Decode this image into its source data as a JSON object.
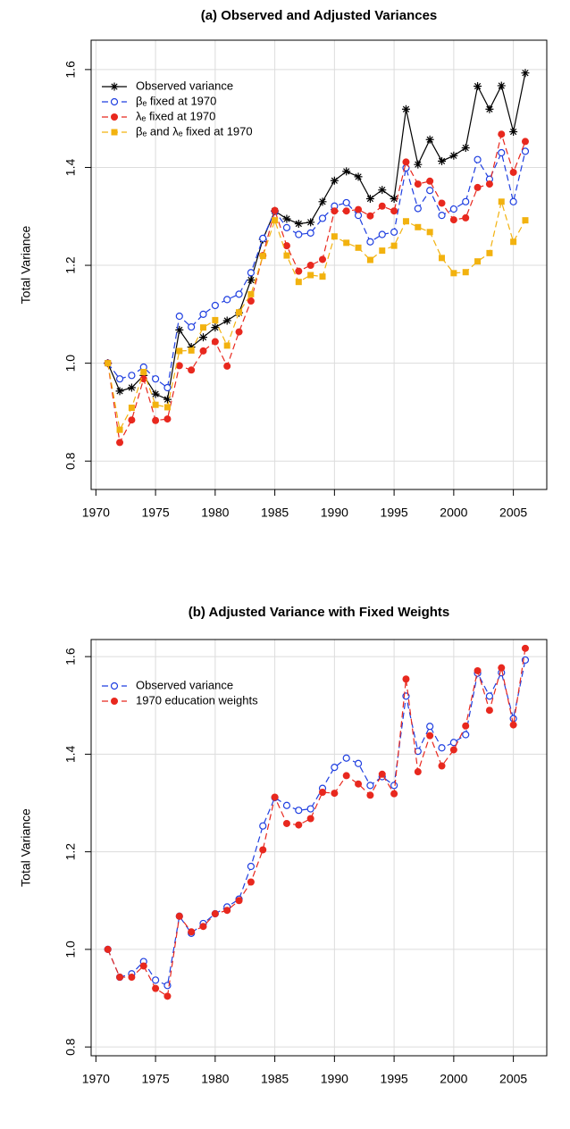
{
  "chart_data": [
    {
      "type": "line",
      "title": "(a) Observed and Adjusted Variances",
      "ylabel": "Total Variance",
      "x": [
        1971,
        1972,
        1973,
        1974,
        1975,
        1976,
        1977,
        1978,
        1979,
        1980,
        1981,
        1982,
        1983,
        1984,
        1985,
        1986,
        1987,
        1988,
        1989,
        1990,
        1991,
        1992,
        1993,
        1994,
        1995,
        1996,
        1997,
        1998,
        1999,
        2000,
        2001,
        2002,
        2003,
        2004,
        2005,
        2006
      ],
      "series": [
        {
          "name": "Observed variance",
          "color": "#000000",
          "marker": "asterisk",
          "dashed": false,
          "values": [
            1.0,
            0.943,
            0.95,
            0.975,
            0.937,
            0.926,
            1.068,
            1.033,
            1.053,
            1.073,
            1.087,
            1.103,
            1.17,
            1.253,
            1.311,
            1.295,
            1.285,
            1.288,
            1.33,
            1.373,
            1.392,
            1.381,
            1.336,
            1.354,
            1.336,
            1.519,
            1.406,
            1.457,
            1.413,
            1.424,
            1.44,
            1.566,
            1.519,
            1.567,
            1.473,
            1.593
          ]
        },
        {
          "name": "βₑ fixed at 1970",
          "color": "#1f3fe0",
          "marker": "open-circle",
          "dashed": true,
          "values": [
            1.0,
            0.968,
            0.975,
            0.992,
            0.968,
            0.95,
            1.096,
            1.074,
            1.1,
            1.118,
            1.13,
            1.141,
            1.185,
            1.255,
            1.311,
            1.277,
            1.263,
            1.266,
            1.296,
            1.321,
            1.328,
            1.302,
            1.248,
            1.263,
            1.268,
            1.399,
            1.316,
            1.353,
            1.302,
            1.315,
            1.33,
            1.416,
            1.376,
            1.43,
            1.33,
            1.433
          ]
        },
        {
          "name": "λₑ fixed at 1970",
          "color": "#e8281e",
          "marker": "circle",
          "dashed": true,
          "values": [
            1.0,
            0.838,
            0.884,
            0.968,
            0.883,
            0.886,
            0.995,
            0.986,
            1.025,
            1.044,
            0.994,
            1.064,
            1.127,
            1.22,
            1.312,
            1.24,
            1.188,
            1.2,
            1.212,
            1.311,
            1.311,
            1.314,
            1.301,
            1.321,
            1.311,
            1.411,
            1.366,
            1.372,
            1.327,
            1.293,
            1.297,
            1.359,
            1.366,
            1.468,
            1.39,
            1.453
          ]
        },
        {
          "name": "βₑ and λₑ fixed at 1970",
          "color": "#f2b20f",
          "marker": "square",
          "dashed": true,
          "values": [
            1.0,
            0.864,
            0.909,
            0.982,
            0.915,
            0.91,
            1.025,
            1.026,
            1.073,
            1.088,
            1.036,
            1.104,
            1.141,
            1.219,
            1.292,
            1.22,
            1.166,
            1.18,
            1.177,
            1.259,
            1.246,
            1.236,
            1.211,
            1.23,
            1.24,
            1.29,
            1.278,
            1.268,
            1.215,
            1.184,
            1.186,
            1.208,
            1.225,
            1.33,
            1.248,
            1.292
          ]
        }
      ],
      "xlim": [
        1969.6,
        2007.8
      ],
      "ylim": [
        0.742,
        1.66
      ],
      "xticks": [
        1970,
        1975,
        1980,
        1985,
        1990,
        1995,
        2000,
        2005
      ],
      "yticks": [
        0.8,
        {
          "value": 1,
          "label": "1.0"
        },
        1.2,
        1.4,
        1.6
      ],
      "grid": true,
      "legend": "top-left"
    },
    {
      "type": "line",
      "title": "(b) Adjusted Variance with Fixed Weights",
      "ylabel": "Total Variance",
      "x": [
        1971,
        1972,
        1973,
        1974,
        1975,
        1976,
        1977,
        1978,
        1979,
        1980,
        1981,
        1982,
        1983,
        1984,
        1985,
        1986,
        1987,
        1988,
        1989,
        1990,
        1991,
        1992,
        1993,
        1994,
        1995,
        1996,
        1997,
        1998,
        1999,
        2000,
        2001,
        2002,
        2003,
        2004,
        2005,
        2006
      ],
      "series": [
        {
          "name": "Observed variance",
          "color": "#1f3fe0",
          "marker": "open-circle",
          "dashed": true,
          "values": [
            1.0,
            0.943,
            0.95,
            0.975,
            0.937,
            0.926,
            1.068,
            1.033,
            1.053,
            1.073,
            1.087,
            1.103,
            1.17,
            1.253,
            1.311,
            1.295,
            1.285,
            1.288,
            1.33,
            1.373,
            1.392,
            1.381,
            1.336,
            1.354,
            1.336,
            1.519,
            1.406,
            1.457,
            1.413,
            1.424,
            1.44,
            1.566,
            1.519,
            1.567,
            1.473,
            1.593
          ]
        },
        {
          "name": "1970 education weights",
          "color": "#e8281e",
          "marker": "circle",
          "dashed": true,
          "values": [
            1.0,
            0.943,
            0.943,
            0.966,
            0.92,
            0.904,
            1.068,
            1.036,
            1.047,
            1.073,
            1.08,
            1.1,
            1.138,
            1.204,
            1.312,
            1.258,
            1.255,
            1.268,
            1.322,
            1.32,
            1.356,
            1.339,
            1.316,
            1.359,
            1.319,
            1.554,
            1.364,
            1.438,
            1.376,
            1.409,
            1.458,
            1.571,
            1.49,
            1.577,
            1.46,
            1.617
          ]
        }
      ],
      "xlim": [
        1969.6,
        2007.8
      ],
      "ylim": [
        0.782,
        1.635
      ],
      "xticks": [
        1970,
        1975,
        1980,
        1985,
        1990,
        1995,
        2000,
        2005
      ],
      "yticks": [
        0.8,
        {
          "value": 1,
          "label": "1.0"
        },
        1.2,
        1.4,
        1.6
      ],
      "grid": true,
      "legend": "top-left"
    }
  ]
}
